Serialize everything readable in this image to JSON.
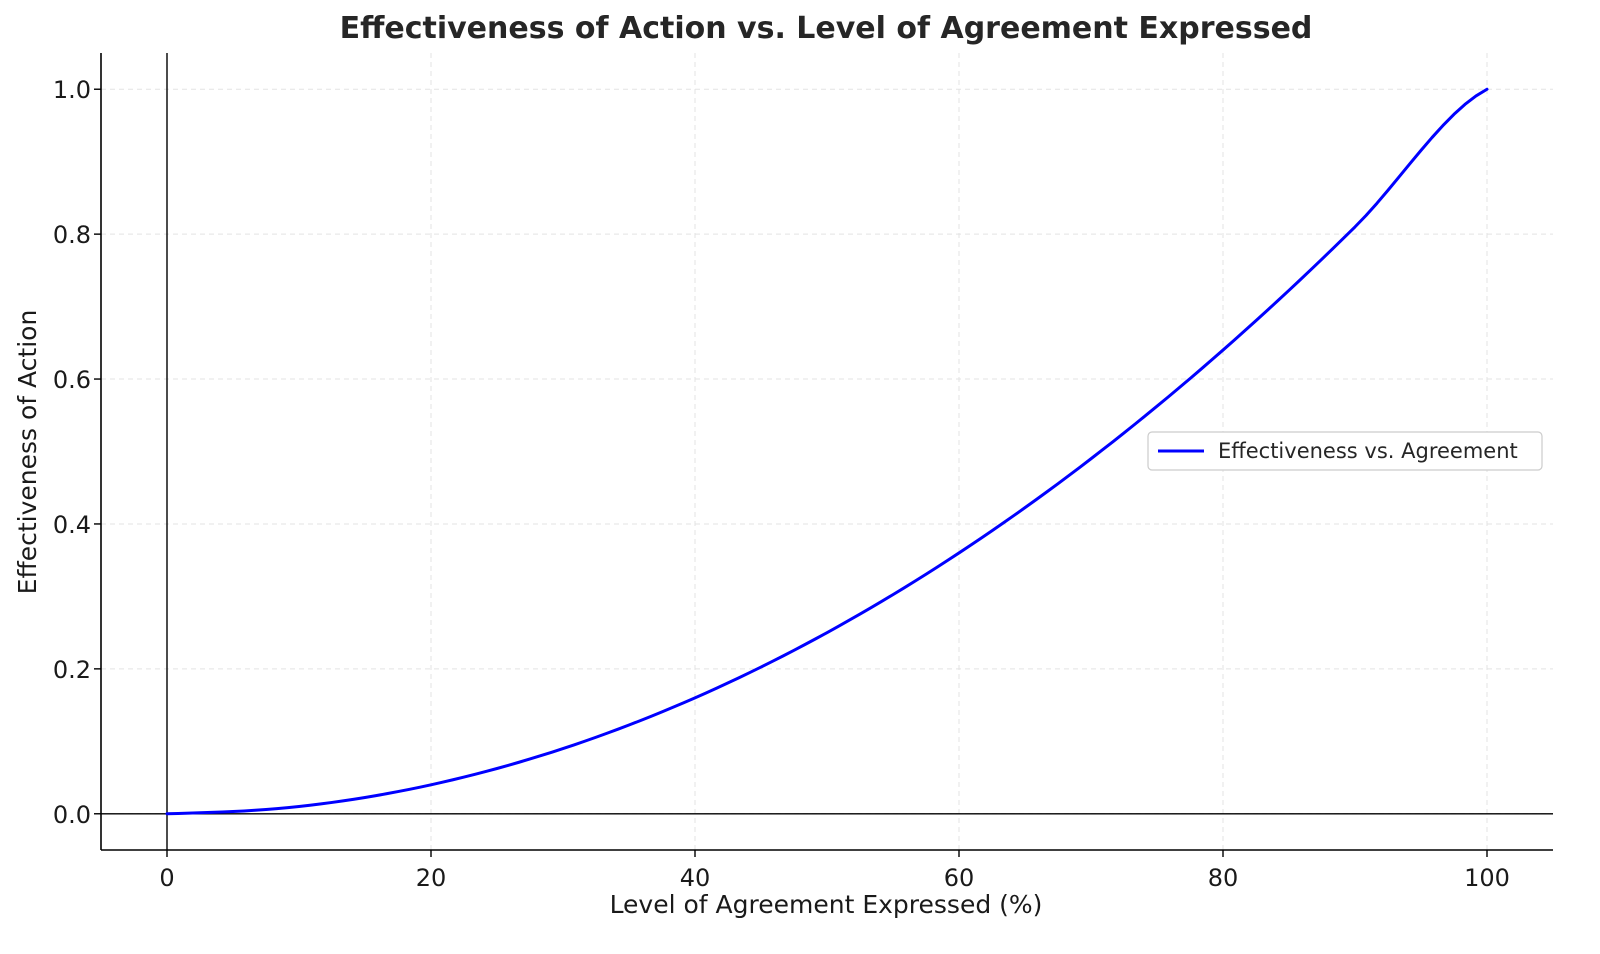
{
  "chart_data": {
    "type": "line",
    "title": "Effectiveness of Action vs. Level of Agreement Expressed",
    "xlabel": "Level of Agreement Expressed (%)",
    "ylabel": "Effectiveness of Action",
    "xlim": [
      -5,
      105
    ],
    "ylim": [
      -0.05,
      1.05
    ],
    "x_ticks": [
      0,
      20,
      40,
      60,
      80,
      100
    ],
    "x_tick_labels": [
      "0",
      "20",
      "40",
      "60",
      "80",
      "100"
    ],
    "y_ticks": [
      0.0,
      0.2,
      0.4,
      0.6,
      0.8,
      1.0
    ],
    "y_tick_labels": [
      "0.0",
      "0.2",
      "0.4",
      "0.6",
      "0.8",
      "1.0"
    ],
    "grid": true,
    "reference_lines": {
      "x": 0,
      "y": 0
    },
    "legend": {
      "placement": "center-right",
      "entries": [
        "Effectiveness vs. Agreement"
      ]
    },
    "series": [
      {
        "name": "Effectiveness vs. Agreement",
        "color": "#0000ff",
        "x": [
          0,
          10,
          20,
          30,
          40,
          50,
          60,
          70,
          80,
          90,
          100
        ],
        "y": [
          0.0,
          0.01,
          0.04,
          0.09,
          0.16,
          0.25,
          0.36,
          0.49,
          0.64,
          0.81,
          1.0
        ]
      }
    ]
  }
}
